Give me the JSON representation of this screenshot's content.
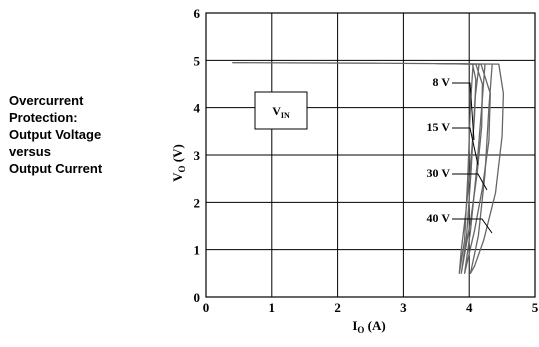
{
  "caption": {
    "lines": [
      "Overcurrent",
      "Protection:",
      "Output Voltage",
      "versus",
      "Output Current"
    ]
  },
  "chart_data": {
    "type": "line",
    "title": "",
    "xlabel": {
      "main": "I",
      "sub": "O",
      "unit": " (A)"
    },
    "ylabel": {
      "main": "V",
      "sub": "O",
      "unit": " (V)"
    },
    "xlim": [
      0,
      5
    ],
    "ylim": [
      0,
      6
    ],
    "x_ticks": [
      "0",
      "1",
      "2",
      "3",
      "4",
      "5"
    ],
    "y_ticks": [
      "0",
      "1",
      "2",
      "3",
      "4",
      "5",
      "6"
    ],
    "grid": true,
    "legend_box": {
      "main": "V",
      "sub": "IN"
    },
    "series": [
      {
        "name": "8 V",
        "x": [
          0.4,
          2.5,
          3.5,
          4.05,
          4.1,
          4.08,
          4.02,
          3.95,
          3.88,
          3.85,
          3.93,
          3.98,
          4.02,
          4.06
        ],
        "y": [
          4.95,
          4.94,
          4.93,
          4.92,
          4.6,
          3.8,
          2.8,
          1.8,
          1.0,
          0.5,
          1.2,
          2.6,
          4.1,
          4.92
        ]
      },
      {
        "name": "15 V",
        "x": [
          3.5,
          4.1,
          4.2,
          4.19,
          4.12,
          4.02,
          3.93,
          3.88,
          3.96,
          4.03,
          4.09,
          4.15
        ],
        "y": [
          4.93,
          4.92,
          4.5,
          3.6,
          2.6,
          1.6,
          0.9,
          0.5,
          1.3,
          2.7,
          4.2,
          4.92
        ]
      },
      {
        "name": "30 V",
        "x": [
          3.6,
          4.18,
          4.32,
          4.3,
          4.2,
          4.08,
          3.98,
          3.93,
          4.02,
          4.12,
          4.2,
          4.24
        ],
        "y": [
          4.93,
          4.92,
          4.3,
          3.3,
          2.3,
          1.4,
          0.8,
          0.5,
          1.4,
          2.8,
          4.2,
          4.92
        ]
      },
      {
        "name": "40 V",
        "x": [
          3.6,
          4.45,
          4.52,
          4.5,
          4.4,
          4.22,
          4.08,
          4.02,
          4.14,
          4.24,
          4.3,
          4.35
        ],
        "y": [
          4.93,
          4.92,
          4.3,
          3.4,
          2.2,
          1.2,
          0.65,
          0.5,
          1.3,
          2.6,
          4.0,
          4.92
        ]
      }
    ],
    "annotations": [
      {
        "text": "8 V",
        "series": 0
      },
      {
        "text": "15 V",
        "series": 1
      },
      {
        "text": "30 V",
        "series": 2
      },
      {
        "text": "40 V",
        "series": 3
      }
    ],
    "colors": {
      "axis": "#000000",
      "grid": "#000000",
      "curve": "#666666"
    }
  }
}
